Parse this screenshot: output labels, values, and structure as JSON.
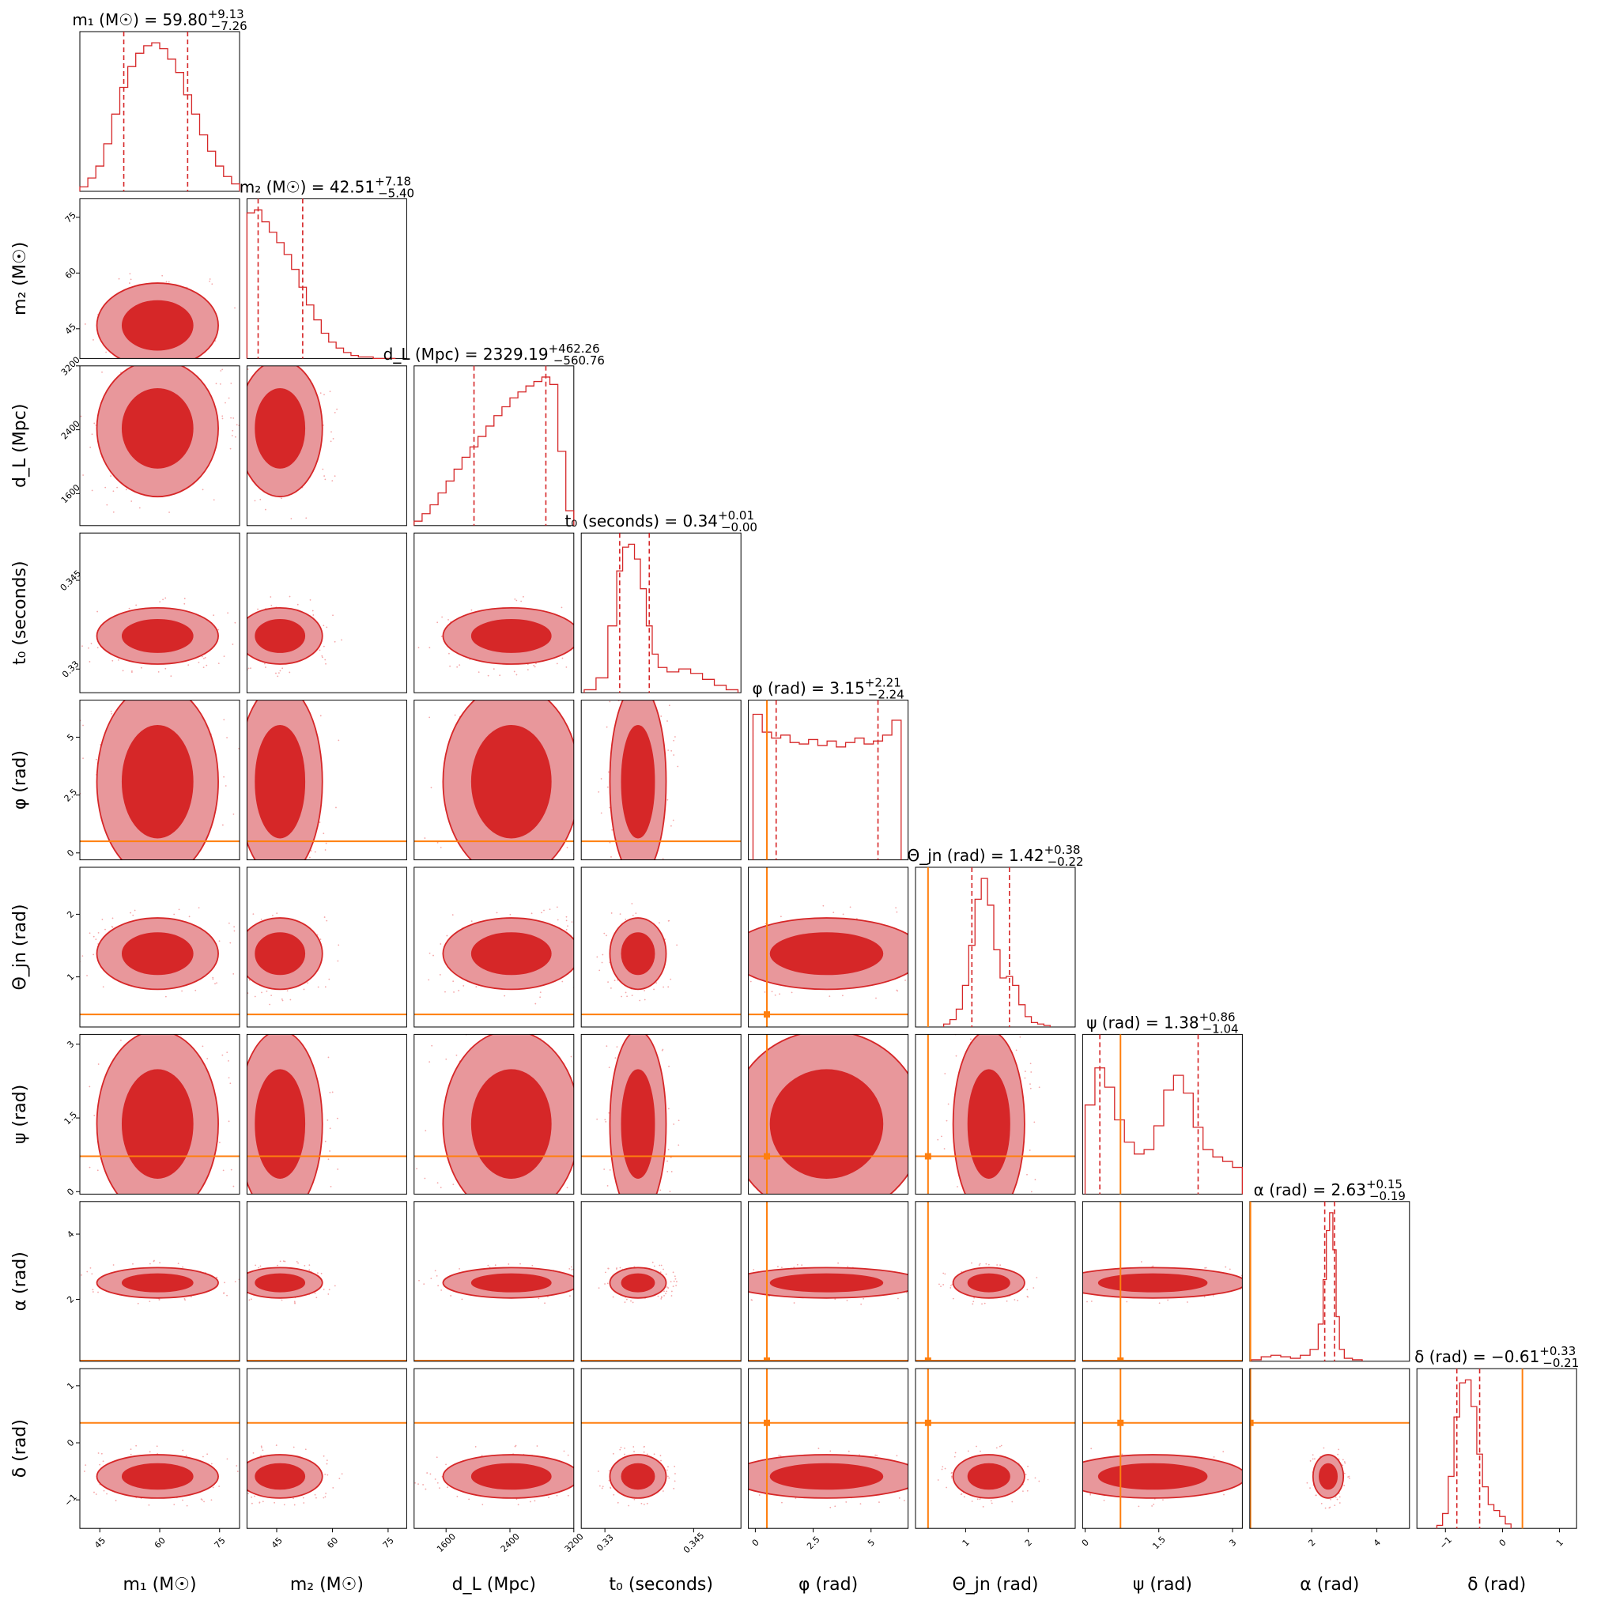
{
  "chart_data": {
    "type": "corner",
    "colors": {
      "contour_dark": "#d62728",
      "contour_light": "#e8979b",
      "contour_line": "#d62728",
      "histogram": "#d62728",
      "injection": "#ff7f0e",
      "scatter": "#f4a6a8"
    },
    "truths": [
      null,
      null,
      null,
      null,
      0.5,
      0.4,
      0.72,
      0.12,
      0.35
    ],
    "parameters": [
      {
        "key": "m1",
        "label": "m₁ (M☉)",
        "title": "m₁ (M☉) = 59.80",
        "sup": "+9.13",
        "sub": "−7.26",
        "median": 59.8,
        "range": [
          40,
          80
        ],
        "ticks": [
          45,
          60,
          75
        ],
        "hist": {
          "x": [
            41,
            43,
            45,
            47,
            49,
            51,
            53,
            55,
            57,
            59,
            61,
            63,
            65,
            67,
            69,
            71,
            73,
            75,
            77,
            79
          ],
          "counts": [
            0.03,
            0.09,
            0.17,
            0.32,
            0.52,
            0.7,
            0.84,
            0.93,
            0.98,
            1.0,
            0.96,
            0.89,
            0.8,
            0.65,
            0.52,
            0.38,
            0.27,
            0.17,
            0.1,
            0.05
          ]
        }
      },
      {
        "key": "m2",
        "label": "m₂ (M☉)",
        "title": "m₂ (M☉) = 42.51",
        "sup": "+7.18",
        "sub": "−5.40",
        "median": 42.51,
        "range": [
          37,
          80
        ],
        "ticks": [
          45,
          60,
          75
        ],
        "hist": {
          "x": [
            38,
            40,
            42,
            44,
            46,
            48,
            50,
            52,
            54,
            56,
            58,
            60,
            62,
            64,
            66,
            68,
            70,
            72,
            74,
            76
          ],
          "counts": [
            0.98,
            1.0,
            0.92,
            0.85,
            0.78,
            0.7,
            0.6,
            0.48,
            0.36,
            0.26,
            0.17,
            0.11,
            0.07,
            0.04,
            0.02,
            0.01,
            0.01,
            0.0,
            0.0,
            0.0
          ]
        }
      },
      {
        "key": "dL",
        "label": "d_L (Mpc)",
        "title": "d_L (Mpc) = 2329.19",
        "sup": "+462.26",
        "sub": "−560.76",
        "median": 2329.19,
        "range": [
          1200,
          3200
        ],
        "ticks": [
          1600,
          2400,
          3200
        ],
        "hist": {
          "x": [
            1250,
            1350,
            1450,
            1550,
            1650,
            1750,
            1850,
            1950,
            2050,
            2150,
            2250,
            2350,
            2450,
            2550,
            2650,
            2750,
            2850,
            2950,
            3050,
            3150
          ],
          "counts": [
            0.03,
            0.08,
            0.14,
            0.22,
            0.3,
            0.38,
            0.46,
            0.53,
            0.6,
            0.67,
            0.74,
            0.8,
            0.86,
            0.9,
            0.94,
            0.97,
            1.0,
            0.95,
            0.5,
            0.1
          ]
        }
      },
      {
        "key": "t0",
        "label": "t₀ (seconds)",
        "title": "t₀ (seconds) = 0.34",
        "sup": "+0.01",
        "sub": "−0.00",
        "median": 0.34,
        "range": [
          0.326,
          0.353
        ],
        "ticks": [
          0.33,
          0.345
        ],
        "hist": {
          "x": [
            0.3275,
            0.3295,
            0.3315,
            0.3325,
            0.3335,
            0.3345,
            0.3355,
            0.3365,
            0.3375,
            0.3385,
            0.3395,
            0.3415,
            0.3435,
            0.3455,
            0.3475,
            0.3495,
            0.3515
          ],
          "counts": [
            0.02,
            0.1,
            0.45,
            0.82,
            0.98,
            1.0,
            0.9,
            0.7,
            0.45,
            0.26,
            0.17,
            0.14,
            0.16,
            0.13,
            0.09,
            0.05,
            0.02
          ]
        }
      },
      {
        "key": "phi",
        "label": "φ (rad)",
        "title": "φ (rad) = 3.15",
        "sup": "+2.21",
        "sub": "−2.24",
        "median": 3.15,
        "range": [
          -0.3,
          6.6
        ],
        "ticks": [
          0.0,
          2.5,
          5.0
        ],
        "hist": {
          "x": [
            0.1,
            0.5,
            0.9,
            1.3,
            1.7,
            2.1,
            2.5,
            2.9,
            3.3,
            3.7,
            4.1,
            4.5,
            4.9,
            5.3,
            5.7,
            6.1
          ],
          "counts": [
            0.98,
            0.86,
            0.82,
            0.84,
            0.79,
            0.78,
            0.81,
            0.77,
            0.8,
            0.76,
            0.79,
            0.82,
            0.78,
            0.8,
            0.84,
            0.94
          ]
        }
      },
      {
        "key": "theta_jn",
        "label": "Θ_jn (rad)",
        "title": "Θ_jn (rad) = 1.42",
        "sup": "+0.38",
        "sub": "−0.22",
        "median": 1.42,
        "range": [
          0.2,
          2.75
        ],
        "ticks": [
          1,
          2
        ],
        "hist": {
          "x": [
            0.7,
            0.8,
            0.9,
            1.0,
            1.1,
            1.2,
            1.3,
            1.4,
            1.5,
            1.6,
            1.7,
            1.8,
            1.9,
            2.0,
            2.1,
            2.2,
            2.3
          ],
          "counts": [
            0.02,
            0.05,
            0.12,
            0.28,
            0.55,
            0.86,
            1.0,
            0.82,
            0.52,
            0.33,
            0.34,
            0.28,
            0.15,
            0.07,
            0.03,
            0.02,
            0.01
          ]
        }
      },
      {
        "key": "psi",
        "label": "ψ (rad)",
        "title": "ψ (rad) = 1.38",
        "sup": "+0.86",
        "sub": "−1.04",
        "median": 1.38,
        "range": [
          -0.05,
          3.2
        ],
        "ticks": [
          0.0,
          1.5,
          3.0
        ],
        "hist": {
          "x": [
            0.1,
            0.3,
            0.5,
            0.7,
            0.9,
            1.1,
            1.3,
            1.5,
            1.7,
            1.9,
            2.1,
            2.3,
            2.5,
            2.7,
            2.9,
            3.1
          ],
          "counts": [
            0.6,
            0.85,
            0.72,
            0.5,
            0.35,
            0.27,
            0.3,
            0.46,
            0.7,
            0.8,
            0.68,
            0.45,
            0.3,
            0.25,
            0.22,
            0.18
          ]
        }
      },
      {
        "key": "alpha",
        "label": "α (rad)",
        "title": "α (rad) = 2.63",
        "sup": "+0.15",
        "sub": "−0.19",
        "median": 2.63,
        "range": [
          0.1,
          5.0
        ],
        "ticks": [
          2,
          4
        ],
        "hist": {
          "x": [
            0.3,
            0.6,
            0.9,
            1.2,
            1.5,
            1.8,
            2.1,
            2.3,
            2.4,
            2.5,
            2.6,
            2.7,
            2.8,
            2.9,
            3.1,
            3.4
          ],
          "counts": [
            0.01,
            0.03,
            0.04,
            0.03,
            0.02,
            0.04,
            0.08,
            0.25,
            0.55,
            0.88,
            1.0,
            0.75,
            0.3,
            0.08,
            0.02,
            0.01
          ]
        }
      },
      {
        "key": "delta",
        "label": "δ (rad)",
        "title": "δ (rad) = −0.61",
        "sup": "+0.33",
        "sub": "−0.21",
        "median": -0.61,
        "range": [
          -1.5,
          1.3
        ],
        "ticks": [
          -1,
          0,
          1
        ],
        "hist": {
          "x": [
            -1.1,
            -1.0,
            -0.9,
            -0.8,
            -0.7,
            -0.6,
            -0.5,
            -0.4,
            -0.3,
            -0.2,
            -0.1,
            0.0,
            0.1
          ],
          "counts": [
            0.02,
            0.1,
            0.35,
            0.75,
            0.98,
            1.0,
            0.82,
            0.5,
            0.28,
            0.16,
            0.12,
            0.08,
            0.03
          ]
        }
      }
    ]
  }
}
